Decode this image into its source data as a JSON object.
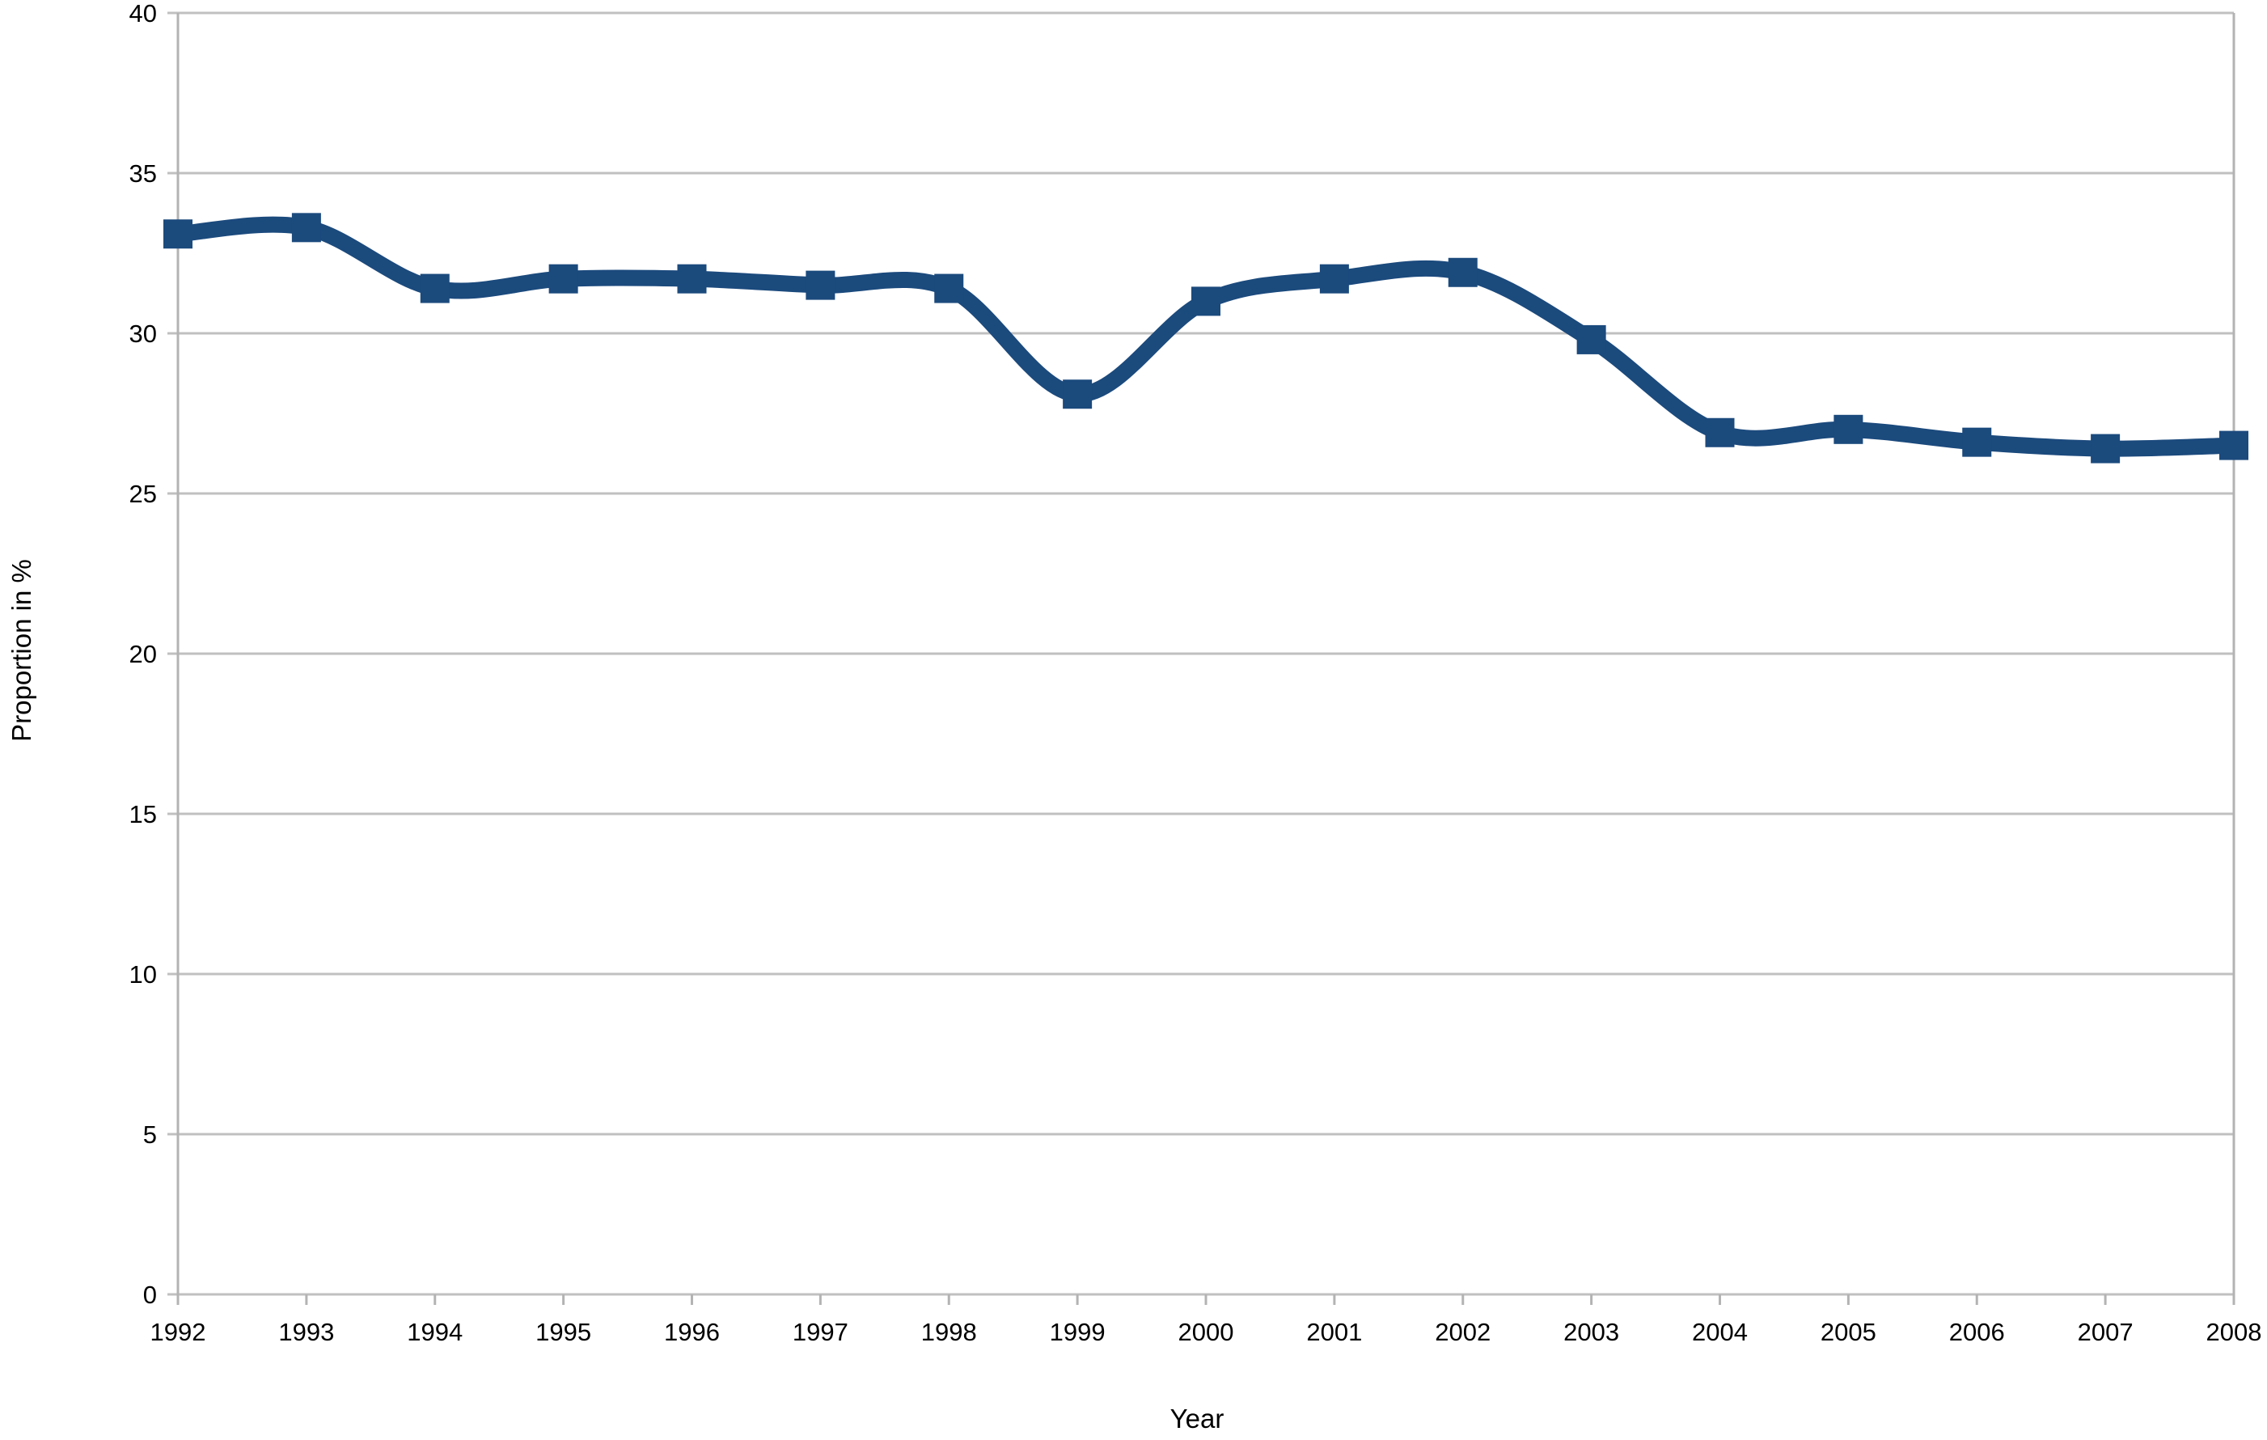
{
  "chart_data": {
    "type": "line",
    "title": "",
    "xlabel": "Year",
    "ylabel": "Proportion in %",
    "categories": [
      1992,
      1993,
      1994,
      1995,
      1996,
      1997,
      1998,
      1999,
      2000,
      2001,
      2002,
      2003,
      2004,
      2005,
      2006,
      2007,
      2008
    ],
    "values": [
      33.1,
      33.3,
      31.4,
      31.7,
      31.7,
      31.5,
      31.4,
      28.1,
      31.0,
      31.7,
      31.9,
      29.8,
      26.9,
      27.0,
      26.6,
      26.4,
      26.5
    ],
    "ylim": [
      0,
      40
    ],
    "yticks": [
      0,
      5,
      10,
      15,
      20,
      25,
      30,
      35,
      40
    ],
    "grid": "horizontal",
    "legend": "none",
    "smooth": true,
    "marker": "square",
    "colors": {
      "line": "#1B4A7D",
      "grid": "#C0C0C0",
      "axis": "#B3B3B3",
      "text": "#000000"
    }
  }
}
